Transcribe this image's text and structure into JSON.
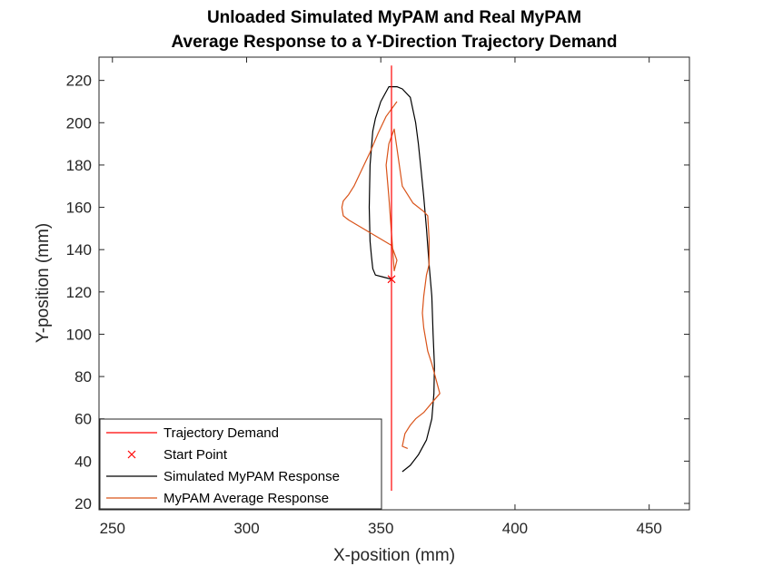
{
  "chart_data": {
    "type": "line",
    "title": [
      "Unloaded Simulated MyPAM and Real MyPAM",
      "Average Response to a Y-Direction Trajectory Demand"
    ],
    "xlabel": "X-position (mm)",
    "ylabel": "Y-position (mm)",
    "xlim": [
      245,
      465
    ],
    "ylim": [
      17,
      231
    ],
    "xticks": [
      250,
      300,
      350,
      400,
      450
    ],
    "yticks": [
      20,
      40,
      60,
      80,
      100,
      120,
      140,
      160,
      180,
      200,
      220
    ],
    "grid": false,
    "legend": {
      "location": "bottom-left",
      "entries": [
        "Trajectory Demand",
        "Start Point",
        "Simulated MyPAM Response",
        "MyPAM Average Response"
      ]
    },
    "series": [
      {
        "name": "Trajectory Demand",
        "color": "#ff0000",
        "style": "line",
        "x": [
          354,
          354
        ],
        "y": [
          26,
          227
        ]
      },
      {
        "name": "Start Point",
        "color": "#ff0000",
        "style": "x-marker",
        "x": [
          354
        ],
        "y": [
          126
        ]
      },
      {
        "name": "Simulated MyPAM Response",
        "color": "#000000",
        "style": "line",
        "x": [
          354,
          351,
          348,
          347,
          346.5,
          346,
          345.7,
          346,
          347,
          348,
          350,
          353,
          356,
          358,
          361,
          363,
          364,
          365,
          366,
          367,
          368,
          369,
          369.5,
          370,
          369.8,
          369,
          367,
          364,
          361,
          358
        ],
        "y": [
          126,
          127,
          128,
          131,
          137,
          144,
          160,
          180,
          196,
          202,
          210,
          217,
          217,
          216,
          212,
          200,
          190,
          178,
          165,
          150,
          133,
          118,
          100,
          85,
          72,
          60,
          50,
          43,
          38,
          35
        ]
      },
      {
        "name": "MyPAM Average Response",
        "color": "#d95319",
        "style": "line",
        "x": [
          356,
          352,
          349,
          346,
          343,
          340,
          338,
          336,
          335.5,
          336,
          338,
          342,
          346,
          350,
          354,
          356,
          355,
          353,
          352,
          353,
          355,
          358,
          362,
          366,
          367.5,
          368,
          368,
          367,
          366,
          365.5,
          366,
          367.5,
          369,
          372,
          370,
          366,
          363,
          361,
          359,
          358,
          360
        ],
        "y": [
          210,
          203,
          195,
          186,
          178,
          170,
          166,
          163,
          160,
          156,
          154,
          151,
          148,
          145,
          142,
          135,
          130,
          165,
          180,
          190,
          197,
          170,
          162,
          158,
          156,
          145,
          133,
          128,
          118,
          110,
          103,
          92,
          86,
          72,
          69,
          63,
          60,
          57,
          53,
          47,
          46
        ]
      }
    ]
  }
}
